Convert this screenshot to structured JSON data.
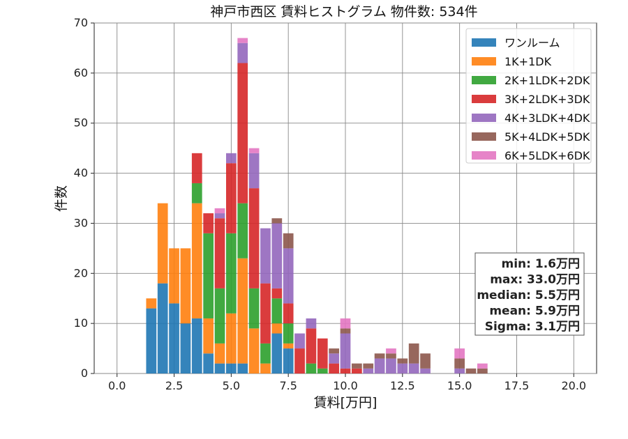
{
  "chart_data": {
    "type": "bar",
    "stacked": true,
    "title": "神戸市西区 賃料ヒストグラム 物件数: 534件",
    "xlabel": "賃料[万円]",
    "ylabel": "件数",
    "xlim": [
      -1.0,
      21.0
    ],
    "ylim": [
      0,
      70
    ],
    "xticks": [
      "0.0",
      "2.5",
      "5.0",
      "7.5",
      "10.0",
      "12.5",
      "15.0",
      "17.5",
      "20.0"
    ],
    "yticks": [
      "0",
      "10",
      "20",
      "30",
      "40",
      "50",
      "60",
      "70"
    ],
    "grid": true,
    "legend_position": "top-right",
    "bin_width": 0.5,
    "bin_centers": [
      1.5,
      2.0,
      2.5,
      3.0,
      3.5,
      4.0,
      4.5,
      5.0,
      5.5,
      6.0,
      6.5,
      7.0,
      7.5,
      8.0,
      8.5,
      9.0,
      9.5,
      10.0,
      10.5,
      11.0,
      11.5,
      12.0,
      12.5,
      13.0,
      13.5,
      15.0,
      15.5,
      16.0
    ],
    "series": [
      {
        "name": "ワンルーム",
        "color": "#1f77b4",
        "values": [
          13,
          18,
          14,
          10,
          11,
          4,
          2,
          2,
          2,
          0,
          0,
          8,
          5,
          0,
          0,
          0,
          0,
          0,
          0,
          0,
          0,
          0,
          0,
          0,
          0,
          0,
          0,
          0
        ]
      },
      {
        "name": "1K+1DK",
        "color": "#ff7f0e",
        "values": [
          2,
          16,
          11,
          15,
          23,
          7,
          4,
          10,
          21,
          9,
          2,
          2,
          1,
          0,
          0,
          0,
          0,
          0,
          0,
          0,
          0,
          0,
          0,
          0,
          0,
          0,
          0,
          0
        ]
      },
      {
        "name": "2K+1LDK+2DK",
        "color": "#2ca02c",
        "values": [
          0,
          0,
          0,
          0,
          4,
          17,
          11,
          16,
          11,
          8,
          4,
          5,
          4,
          0,
          2,
          1,
          0,
          0,
          0,
          0,
          0,
          0,
          0,
          0,
          0,
          0,
          0,
          0
        ]
      },
      {
        "name": "3K+2LDK+3DK",
        "color": "#d62728",
        "values": [
          0,
          0,
          0,
          0,
          6,
          4,
          14,
          14,
          28,
          20,
          12,
          2,
          4,
          5,
          7,
          6,
          2,
          1,
          1,
          0,
          0,
          0,
          0,
          0,
          0,
          0,
          0,
          0
        ]
      },
      {
        "name": "4K+3LDK+4DK",
        "color": "#9467bd",
        "values": [
          0,
          0,
          0,
          0,
          0,
          0,
          1,
          2,
          4,
          7,
          11,
          13,
          11,
          3,
          2,
          0,
          2,
          7,
          0,
          1,
          3,
          3,
          2,
          2,
          1,
          1,
          0,
          0
        ]
      },
      {
        "name": "5K+4LDK+5DK",
        "color": "#8c564b",
        "values": [
          0,
          0,
          0,
          0,
          0,
          0,
          0,
          0,
          0,
          0,
          0,
          1,
          3,
          0,
          0,
          0,
          1,
          1,
          1,
          1,
          1,
          1,
          1,
          4,
          3,
          2,
          1,
          1
        ]
      },
      {
        "name": "6K+5LDK+6DK",
        "color": "#e377c2",
        "values": [
          0,
          0,
          0,
          0,
          0,
          0,
          1,
          0,
          1,
          1,
          0,
          0,
          0,
          0,
          0,
          0,
          0,
          2,
          0,
          0,
          0,
          1,
          0,
          0,
          0,
          2,
          0,
          1
        ]
      }
    ],
    "annotation": {
      "lines": [
        "min: 1.6万円",
        "max: 33.0万円",
        "median: 5.5万円",
        "mean: 5.9万円",
        "Sigma: 3.1万円"
      ]
    }
  }
}
